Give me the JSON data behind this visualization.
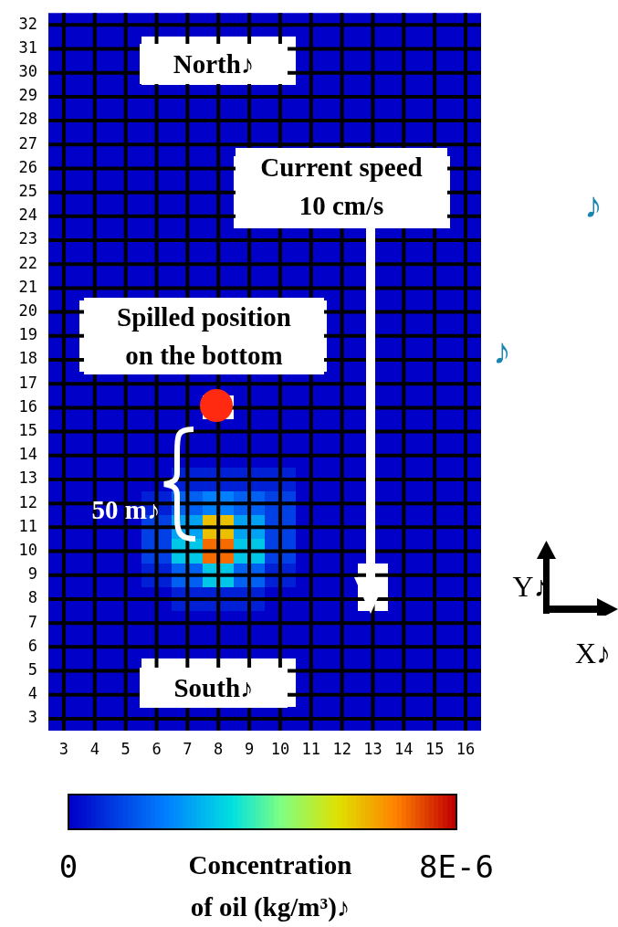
{
  "chart_data": {
    "type": "heatmap",
    "categories": [
      "3",
      "4",
      "5",
      "6",
      "7",
      "8",
      "9",
      "10",
      "11",
      "12",
      "13",
      "14",
      "15",
      "16"
    ],
    "y_categories": [
      "32",
      "31",
      "30",
      "29",
      "28",
      "27",
      "26",
      "25",
      "24",
      "23",
      "22",
      "21",
      "20",
      "19",
      "18",
      "17",
      "16",
      "15",
      "14",
      "13",
      "12",
      "11",
      "10",
      "9",
      "8",
      "7",
      "6",
      "5",
      "4",
      "3"
    ],
    "cells": [
      [
        0,
        0,
        0,
        0,
        0,
        0,
        0,
        0,
        0,
        0,
        0,
        0,
        0,
        0
      ],
      [
        0,
        0,
        0,
        null,
        null,
        null,
        null,
        null,
        0,
        0,
        0,
        0,
        0,
        0
      ],
      [
        0,
        0,
        0,
        null,
        null,
        null,
        null,
        null,
        0,
        0,
        0,
        0,
        0,
        0
      ],
      [
        0,
        0,
        0,
        0,
        0,
        0,
        0,
        0,
        0,
        0,
        0,
        0,
        0,
        0
      ],
      [
        0,
        0,
        0,
        0,
        0,
        0,
        0,
        0,
        0,
        0,
        0,
        0,
        0,
        0
      ],
      [
        0,
        0,
        0,
        0,
        0,
        0,
        0,
        0,
        0,
        0,
        0,
        0,
        0,
        0
      ],
      [
        0,
        0,
        0,
        0,
        0,
        0,
        null,
        null,
        null,
        null,
        null,
        null,
        null,
        0
      ],
      [
        0,
        0,
        0,
        0,
        0,
        0,
        null,
        null,
        null,
        null,
        null,
        null,
        null,
        0
      ],
      [
        0,
        0,
        0,
        0,
        0,
        0,
        null,
        null,
        null,
        null,
        null,
        null,
        null,
        0
      ],
      [
        0,
        0,
        0,
        0,
        0,
        0,
        0,
        0,
        0,
        0,
        0,
        0,
        0,
        0
      ],
      [
        0,
        0,
        0,
        0,
        0,
        0,
        0,
        0,
        0,
        0,
        0,
        0,
        0,
        0
      ],
      [
        0,
        0,
        0,
        0,
        0,
        0,
        0,
        0,
        0,
        0,
        0,
        0,
        0,
        0
      ],
      [
        0,
        null,
        null,
        null,
        null,
        null,
        null,
        null,
        null,
        0,
        0,
        0,
        0,
        0
      ],
      [
        0,
        null,
        null,
        null,
        null,
        null,
        null,
        null,
        null,
        0,
        0,
        0,
        0,
        0
      ],
      [
        0,
        null,
        null,
        null,
        null,
        null,
        null,
        null,
        null,
        0,
        0,
        0,
        0,
        0
      ],
      [
        0,
        0,
        0,
        0,
        0,
        0,
        0,
        0,
        0,
        0,
        0,
        0,
        0,
        0
      ],
      [
        0,
        0,
        0,
        0,
        0,
        null,
        0,
        0,
        0,
        0,
        0,
        0,
        0,
        0
      ],
      [
        0,
        0,
        0,
        0,
        0,
        0,
        0,
        0,
        0,
        0,
        0,
        0,
        0,
        0
      ],
      [
        0,
        0,
        0,
        0,
        0,
        0,
        0,
        0,
        0,
        0,
        0,
        0,
        0,
        0
      ],
      [
        0,
        0,
        0,
        0,
        5e-07,
        5e-07,
        5e-07,
        5e-07,
        0,
        0,
        0,
        0,
        0,
        0
      ],
      [
        0,
        0,
        0,
        5e-07,
        1.5e-06,
        2e-06,
        1.5e-06,
        1e-06,
        0,
        0,
        0,
        0,
        0,
        0
      ],
      [
        0,
        0,
        0,
        1e-06,
        2.5e-06,
        6e-06,
        2.5e-06,
        1e-06,
        0,
        0,
        0,
        0,
        0,
        0
      ],
      [
        0,
        0,
        0,
        1e-06,
        3e-06,
        7e-06,
        3e-06,
        1e-06,
        0,
        0,
        0,
        0,
        0,
        0
      ],
      [
        0,
        0,
        0,
        5e-07,
        1.5e-06,
        3e-06,
        1.5e-06,
        5e-07,
        0,
        0,
        null,
        0,
        0,
        0
      ],
      [
        0,
        0,
        0,
        0,
        5e-07,
        5e-07,
        5e-07,
        0,
        0,
        0,
        null,
        0,
        0,
        0
      ],
      [
        0,
        0,
        0,
        0,
        0,
        0,
        0,
        0,
        0,
        0,
        0,
        0,
        0,
        0
      ],
      [
        0,
        0,
        0,
        0,
        0,
        0,
        0,
        0,
        0,
        0,
        0,
        0,
        0,
        0
      ],
      [
        0,
        0,
        0,
        null,
        null,
        null,
        null,
        null,
        0,
        0,
        0,
        0,
        0,
        0
      ],
      [
        0,
        0,
        0,
        null,
        null,
        null,
        null,
        null,
        0,
        0,
        0,
        0,
        0,
        0
      ],
      [
        0,
        0,
        0,
        0,
        0,
        0,
        0,
        0,
        0,
        0,
        0,
        0,
        0,
        0
      ]
    ],
    "clim": [
      0,
      8e-06
    ],
    "cticks": [
      {
        "value": 0,
        "label": "0"
      },
      {
        "value": 8e-06,
        "label": "8E-6"
      }
    ],
    "clabel": "Concentration\nof oil (kg/m³)♪",
    "grid": true,
    "annotations": [
      "North♪",
      "South♪",
      "Current speed\n10 cm/s",
      "Spilled position\non the bottom",
      "50 m♪",
      "♪",
      "♪",
      "Y♪",
      "X♪"
    ]
  }
}
